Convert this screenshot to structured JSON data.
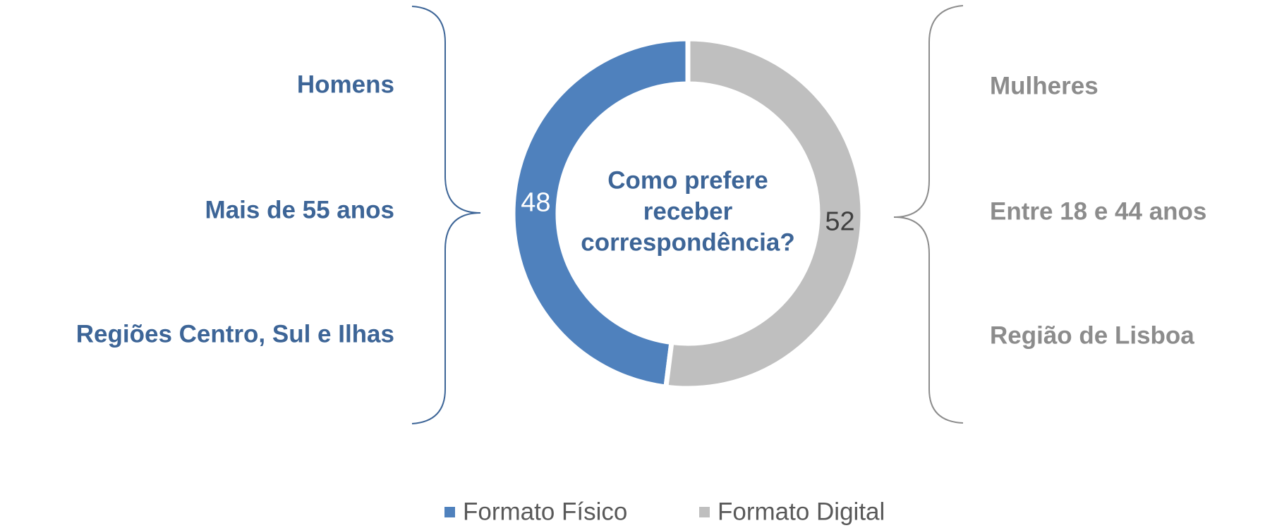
{
  "chart_data": {
    "type": "donut",
    "categories": [
      "Formato Físico",
      "Formato Digital"
    ],
    "values": [
      48,
      52
    ],
    "colors": [
      "#4f81bd",
      "#bfbfbf"
    ],
    "label_colors": [
      "#ffffff",
      "#404040"
    ],
    "center_text": [
      "Como prefere",
      "receber",
      "correspondência?"
    ],
    "left_labels": [
      "Homens",
      "Mais de 55 anos",
      "Regiões Centro, Sul e Ilhas"
    ],
    "right_labels": [
      "Mulheres",
      "Entre 18 e 44 anos",
      "Região de Lisboa"
    ],
    "left_label_color": "#3d6597",
    "right_label_color": "#8c8c8c",
    "legend": "bottom"
  }
}
